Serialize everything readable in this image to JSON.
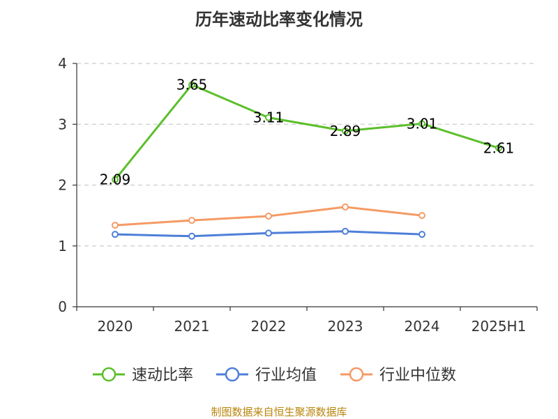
{
  "chart_data": {
    "type": "line",
    "title": "历年速动比率变化情况",
    "categories": [
      "2020",
      "2021",
      "2022",
      "2023",
      "2024",
      "2025H1"
    ],
    "y_ticks": [
      "0",
      "1",
      "2",
      "3",
      "4"
    ],
    "ylim": [
      0,
      4
    ],
    "grid": true,
    "legend_position": "bottom-center",
    "series": [
      {
        "name": "速动比率",
        "color": "#5bbf2a",
        "values": [
          2.09,
          3.65,
          3.11,
          2.89,
          3.01,
          2.61
        ],
        "labels": [
          "2.09",
          "3.65",
          "3.11",
          "2.89",
          "3.01",
          "2.61"
        ]
      },
      {
        "name": "行业均值",
        "color": "#4e7fd8",
        "values": [
          1.19,
          1.16,
          1.21,
          1.24,
          1.19,
          null
        ]
      },
      {
        "name": "行业中位数",
        "color": "#f59a64",
        "values": [
          1.34,
          1.42,
          1.49,
          1.64,
          1.5,
          null
        ]
      }
    ]
  },
  "source": "制图数据来自恒生聚源数据库"
}
